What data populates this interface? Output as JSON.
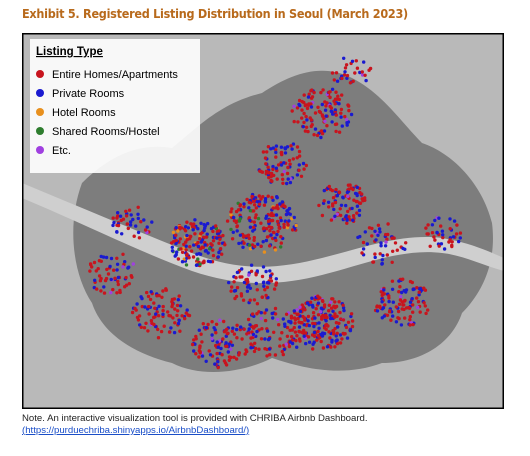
{
  "title": "Exhibit 5. Registered Listing Distribution in Seoul (March 2023)",
  "legend": {
    "title": "Listing Type",
    "items": [
      {
        "label": "Entire Homes/Apartments",
        "color": "#c8141e"
      },
      {
        "label": "Private Rooms",
        "color": "#1a1ad0"
      },
      {
        "label": "Hotel Rooms",
        "color": "#e8901e"
      },
      {
        "label": "Shared Rooms/Hostel",
        "color": "#2e7d2e"
      },
      {
        "label": "Etc.",
        "color": "#a040e0"
      }
    ]
  },
  "note": {
    "text": "Note. An interactive visualization tool is provided with CHRIBA Airbnb Dashboard.",
    "link": "(https://purduechriba.shinyapps.io/AirbnbDashboard/)"
  }
}
